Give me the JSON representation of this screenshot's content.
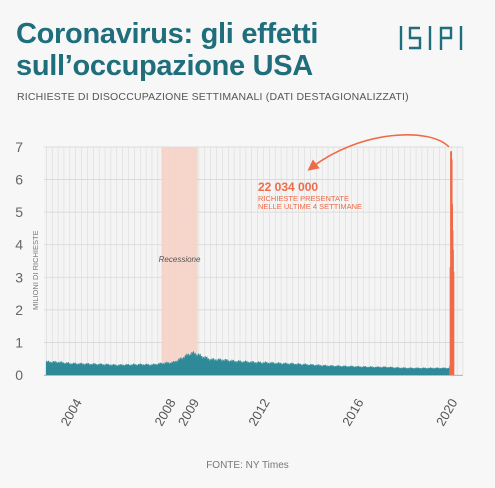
{
  "title": "Coronavirus: gli effetti sull’occupazione USA",
  "subtitle": "RICHIESTE DI DISOCCUPAZIONE SETTIMANALI (DATI DESTAGIONALIZZATI)",
  "logo_text": "ISPI",
  "source": "FONTE: NY Times",
  "colors": {
    "title": "#1f6e7c",
    "bars": "#2f8a99",
    "highlight": "#ef6b48",
    "recession_band": "#f6d3c7",
    "grid": "#d6d6d6"
  },
  "chart_data": {
    "type": "bar",
    "ylabel": "MILIONI DI RICHIESTE",
    "ylim": [
      0,
      7
    ],
    "yticks": [
      "0",
      "1",
      "2",
      "3",
      "4",
      "5",
      "6",
      "7"
    ],
    "xlim": [
      2002.9,
      2020.75
    ],
    "xticks": [
      {
        "label": "2004",
        "value": 2004
      },
      {
        "label": "2008",
        "value": 2008
      },
      {
        "label": "2009",
        "value": 2009
      },
      {
        "label": "2012",
        "value": 2012
      },
      {
        "label": "2016",
        "value": 2016
      },
      {
        "label": "2020",
        "value": 2020
      }
    ],
    "grid": true,
    "recession": {
      "label": "Recessione",
      "start": 2007.9,
      "end": 2009.45
    },
    "annotation": {
      "value": "22 034 000",
      "text_lines": [
        "RICHIESTE PRESENTATE",
        "NELLE ULTIME 4 SETTIMANE"
      ]
    },
    "series": [
      {
        "points": [
          [
            2003.0,
            0.4
          ],
          [
            2003.5,
            0.39
          ],
          [
            2004.0,
            0.35
          ],
          [
            2004.5,
            0.34
          ],
          [
            2005.0,
            0.33
          ],
          [
            2005.5,
            0.32
          ],
          [
            2006.0,
            0.3
          ],
          [
            2006.5,
            0.31
          ],
          [
            2007.0,
            0.32
          ],
          [
            2007.5,
            0.31
          ],
          [
            2008.0,
            0.36
          ],
          [
            2008.4,
            0.38
          ],
          [
            2008.7,
            0.48
          ],
          [
            2009.0,
            0.6
          ],
          [
            2009.2,
            0.66
          ],
          [
            2009.35,
            0.65
          ],
          [
            2009.5,
            0.6
          ],
          [
            2010.0,
            0.47
          ],
          [
            2010.5,
            0.46
          ],
          [
            2011.0,
            0.42
          ],
          [
            2011.5,
            0.4
          ],
          [
            2012.0,
            0.38
          ],
          [
            2012.5,
            0.37
          ],
          [
            2013.0,
            0.35
          ],
          [
            2013.5,
            0.34
          ],
          [
            2014.0,
            0.32
          ],
          [
            2014.5,
            0.3
          ],
          [
            2015.0,
            0.28
          ],
          [
            2015.5,
            0.27
          ],
          [
            2016.0,
            0.26
          ],
          [
            2016.5,
            0.25
          ],
          [
            2017.0,
            0.24
          ],
          [
            2017.5,
            0.24
          ],
          [
            2018.0,
            0.22
          ],
          [
            2018.5,
            0.21
          ],
          [
            2019.0,
            0.21
          ],
          [
            2019.5,
            0.21
          ],
          [
            2020.0,
            0.21
          ],
          [
            2020.17,
            0.21
          ]
        ]
      },
      {
        "highlight": true,
        "points": [
          [
            2020.205,
            0.28
          ],
          [
            2020.224,
            3.31
          ],
          [
            2020.243,
            6.87
          ],
          [
            2020.262,
            6.62
          ],
          [
            2020.281,
            5.24
          ],
          [
            2020.3,
            4.44
          ],
          [
            2020.319,
            3.85
          ],
          [
            2020.338,
            3.17
          ]
        ]
      }
    ]
  }
}
